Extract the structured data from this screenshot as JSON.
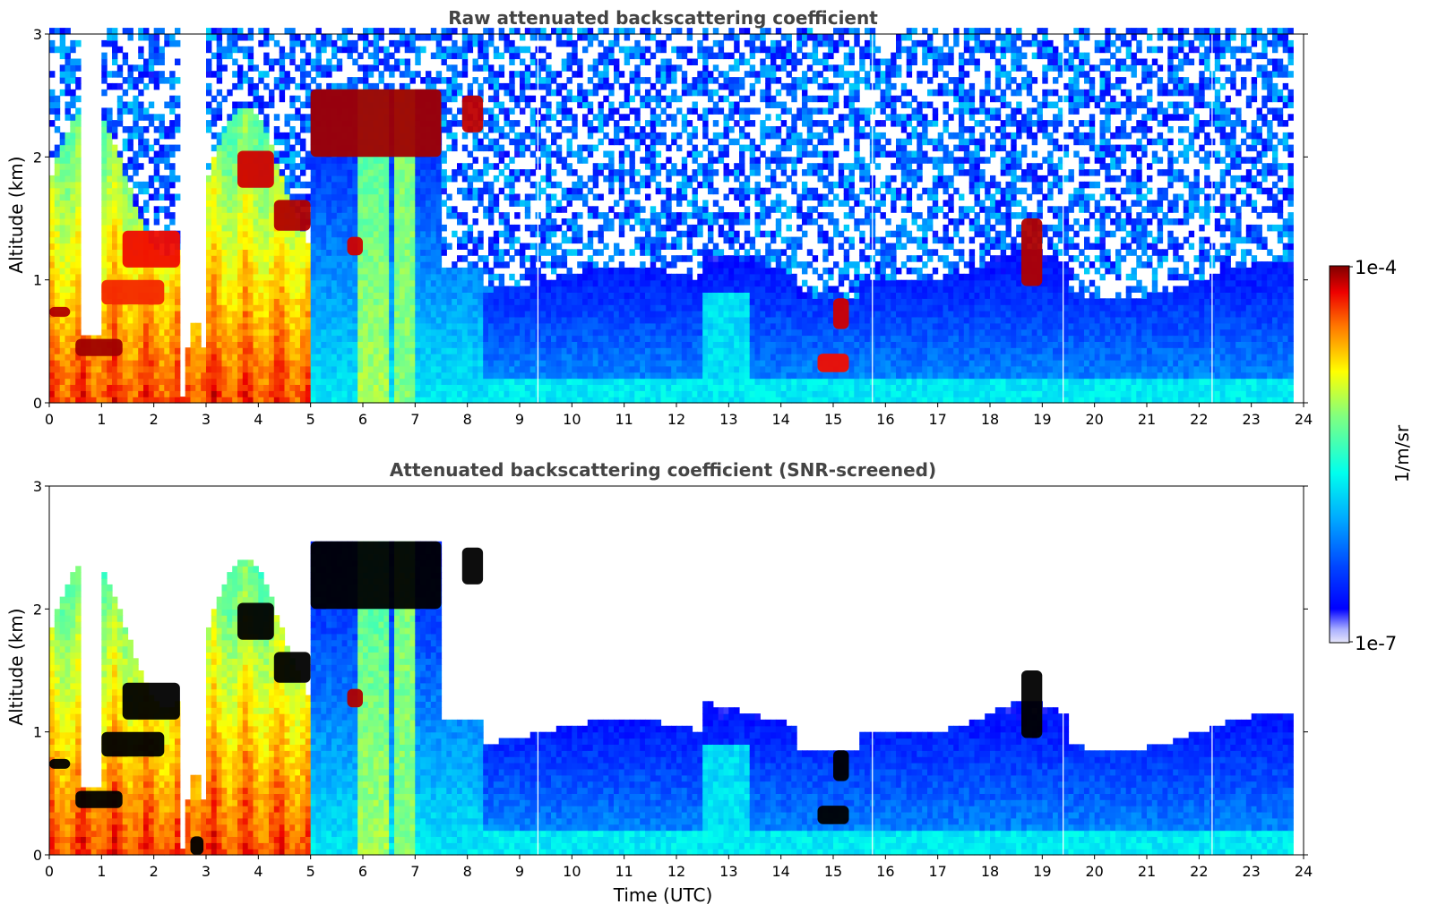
{
  "chart_data": [
    {
      "type": "heatmap",
      "title": "Raw attenuated backscattering coefficient",
      "xlabel": "",
      "ylabel": "Altitude (km)",
      "xlim": [
        0,
        24
      ],
      "ylim": [
        0,
        3
      ],
      "xticks": [
        "0",
        "1",
        "2",
        "3",
        "4",
        "5",
        "6",
        "7",
        "8",
        "9",
        "10",
        "11",
        "12",
        "13",
        "14",
        "15",
        "16",
        "17",
        "18",
        "19",
        "20",
        "21",
        "22",
        "23",
        "24"
      ],
      "yticks": [
        "0",
        "1",
        "2",
        "3"
      ],
      "screened": false,
      "layers": [
        {
          "x_start": 0.0,
          "x_end": 0.4,
          "y_bottom": 0.7,
          "y_top": 0.78,
          "level": 0.97
        },
        {
          "x_start": 0.5,
          "x_end": 1.4,
          "y_bottom": 0.38,
          "y_top": 0.52,
          "level": 0.98
        },
        {
          "x_start": 1.0,
          "x_end": 2.2,
          "y_bottom": 0.8,
          "y_top": 1.0,
          "level": 0.9
        },
        {
          "x_start": 1.4,
          "x_end": 2.5,
          "y_bottom": 1.1,
          "y_top": 1.4,
          "level": 0.92
        },
        {
          "x_start": 3.6,
          "x_end": 4.3,
          "y_bottom": 1.75,
          "y_top": 2.05,
          "level": 0.95
        },
        {
          "x_start": 4.3,
          "x_end": 5.0,
          "y_bottom": 1.4,
          "y_top": 1.65,
          "level": 0.97
        },
        {
          "x_start": 5.0,
          "x_end": 7.5,
          "y_bottom": 2.0,
          "y_top": 2.55,
          "level": 0.98
        },
        {
          "x_start": 7.9,
          "x_end": 8.3,
          "y_bottom": 2.2,
          "y_top": 2.5,
          "level": 0.96
        },
        {
          "x_start": 5.7,
          "x_end": 6.0,
          "y_bottom": 1.2,
          "y_top": 1.35,
          "level": 0.95
        },
        {
          "x_start": 18.6,
          "x_end": 19.0,
          "y_bottom": 0.95,
          "y_top": 1.5,
          "level": 0.97
        },
        {
          "x_start": 15.0,
          "x_end": 15.3,
          "y_bottom": 0.6,
          "y_top": 0.85,
          "level": 0.95
        },
        {
          "x_start": 14.7,
          "x_end": 15.3,
          "y_bottom": 0.25,
          "y_top": 0.4,
          "level": 0.92
        }
      ]
    },
    {
      "type": "heatmap",
      "title": "Attenuated backscattering coefficient (SNR-screened)",
      "xlabel": "Time (UTC)",
      "ylabel": "Altitude (km)",
      "xlim": [
        0,
        24
      ],
      "ylim": [
        0,
        3
      ],
      "xticks": [
        "0",
        "1",
        "2",
        "3",
        "4",
        "5",
        "6",
        "7",
        "8",
        "9",
        "10",
        "11",
        "12",
        "13",
        "14",
        "15",
        "16",
        "17",
        "18",
        "19",
        "20",
        "21",
        "22",
        "23",
        "24"
      ],
      "yticks": [
        "0",
        "1",
        "2",
        "3"
      ],
      "screened": true,
      "layers": [
        {
          "x_start": 0.0,
          "x_end": 0.4,
          "y_bottom": 0.7,
          "y_top": 0.78,
          "level": 1.0
        },
        {
          "x_start": 0.5,
          "x_end": 1.4,
          "y_bottom": 0.38,
          "y_top": 0.52,
          "level": 1.0
        },
        {
          "x_start": 1.0,
          "x_end": 2.2,
          "y_bottom": 0.8,
          "y_top": 1.0,
          "level": 1.0
        },
        {
          "x_start": 1.4,
          "x_end": 2.5,
          "y_bottom": 1.1,
          "y_top": 1.4,
          "level": 1.0
        },
        {
          "x_start": 3.6,
          "x_end": 4.3,
          "y_bottom": 1.75,
          "y_top": 2.05,
          "level": 1.0
        },
        {
          "x_start": 4.3,
          "x_end": 5.0,
          "y_bottom": 1.4,
          "y_top": 1.65,
          "level": 1.0
        },
        {
          "x_start": 5.0,
          "x_end": 7.5,
          "y_bottom": 2.0,
          "y_top": 2.55,
          "level": 1.0
        },
        {
          "x_start": 7.9,
          "x_end": 8.3,
          "y_bottom": 2.2,
          "y_top": 2.5,
          "level": 1.0
        },
        {
          "x_start": 5.7,
          "x_end": 6.0,
          "y_bottom": 1.2,
          "y_top": 1.35,
          "level": 0.97
        },
        {
          "x_start": 18.6,
          "x_end": 19.0,
          "y_bottom": 0.95,
          "y_top": 1.5,
          "level": 1.0
        },
        {
          "x_start": 15.0,
          "x_end": 15.3,
          "y_bottom": 0.6,
          "y_top": 0.85,
          "level": 1.0
        },
        {
          "x_start": 14.7,
          "x_end": 15.3,
          "y_bottom": 0.25,
          "y_top": 0.4,
          "level": 1.0
        },
        {
          "x_start": 2.7,
          "x_end": 2.95,
          "y_bottom": 0.0,
          "y_top": 0.15,
          "level": 1.0
        }
      ]
    }
  ],
  "colorbar": {
    "label": "1/m/sr",
    "max_label": "1e-4",
    "min_label": "1e-7",
    "scale": "log",
    "range": [
      1e-07,
      0.0001
    ],
    "colormap": "jet"
  },
  "colors": {
    "saturated": "#000000",
    "title": "#444444"
  }
}
